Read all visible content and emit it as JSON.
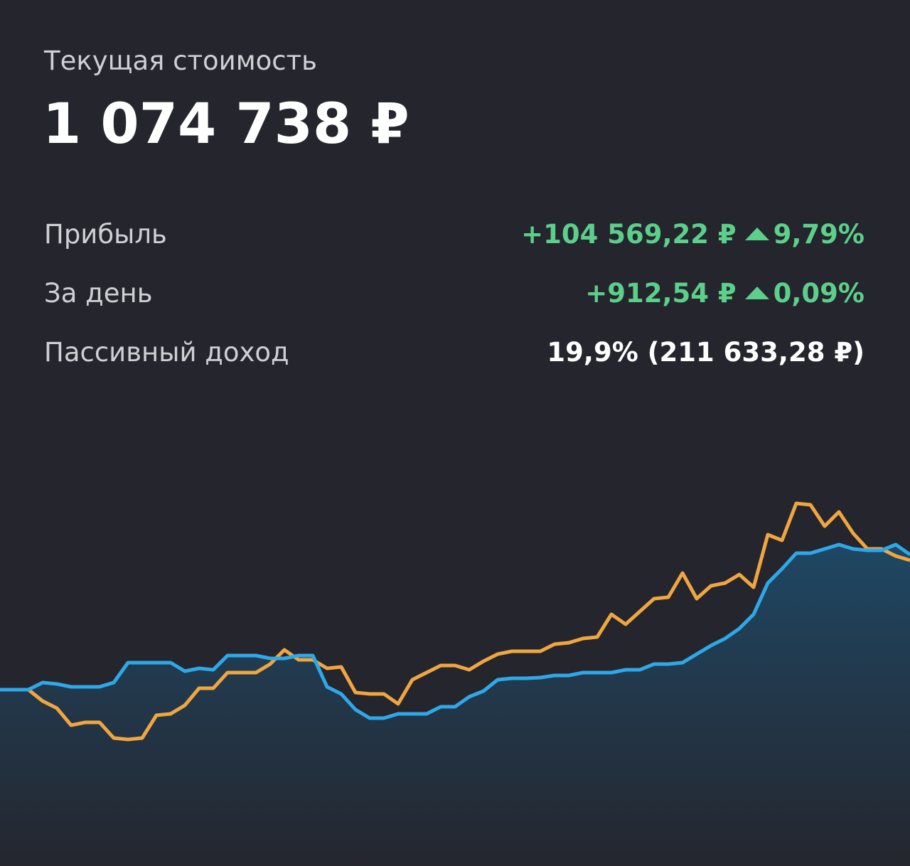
{
  "header": {
    "label": "Текущая стоимость",
    "value": "1 074 738 ₽"
  },
  "rows": [
    {
      "label": "Прибыль",
      "value": "+104 569,22 ₽",
      "change": "9,79%"
    },
    {
      "label": "За день",
      "value": "+912,54 ₽",
      "change": "0,09%"
    },
    {
      "label": "Пассивный доход",
      "value": "19,9% (211 633,28 ₽)"
    }
  ],
  "chart_data": {
    "type": "line",
    "series": [
      {
        "color": "#2ea8e8",
        "values": [
          0,
          0,
          0,
          1,
          0.8,
          0.4,
          0.4,
          0.4,
          1,
          3.8,
          3.8,
          3.8,
          3.8,
          2.6,
          3,
          2.8,
          4.8,
          4.8,
          4.8,
          4.4,
          4.4,
          4.8,
          4.8,
          0.4,
          -0.6,
          -2.8,
          -4,
          -4,
          -3.4,
          -3.4,
          -3.4,
          -2.4,
          -2.4,
          -1,
          -0.2,
          1.4,
          1.6,
          1.6,
          1.7,
          2,
          2,
          2.4,
          2.4,
          2.4,
          2.8,
          2.8,
          3.6,
          3.6,
          3.8,
          5,
          6.2,
          7.2,
          8.6,
          10.6,
          15,
          17,
          19.2,
          19.2,
          19.8,
          20.4,
          19.8,
          19.6,
          19.6,
          20.4,
          19
        ]
      },
      {
        "color": "#f0a640",
        "values": [
          0,
          0,
          0,
          -1.6,
          -2.6,
          -5,
          -4.6,
          -4.6,
          -6.8,
          -7,
          -6.8,
          -3.6,
          -3.4,
          -2.2,
          0.2,
          0.2,
          2.4,
          2.4,
          2.4,
          3.6,
          5.6,
          4.2,
          4.2,
          3,
          3.2,
          -0.4,
          -0.6,
          -0.6,
          -2,
          1.4,
          2.4,
          3.4,
          3.4,
          2.8,
          4,
          5,
          5.4,
          5.4,
          5.4,
          6.4,
          6.6,
          7.2,
          7.4,
          10.6,
          9.2,
          11,
          12.8,
          13,
          16.4,
          12.8,
          14.6,
          15,
          16.2,
          14.4,
          21.8,
          21,
          26.2,
          26,
          23,
          25,
          22,
          19.8,
          19.8,
          18.8,
          18.2
        ]
      }
    ]
  }
}
